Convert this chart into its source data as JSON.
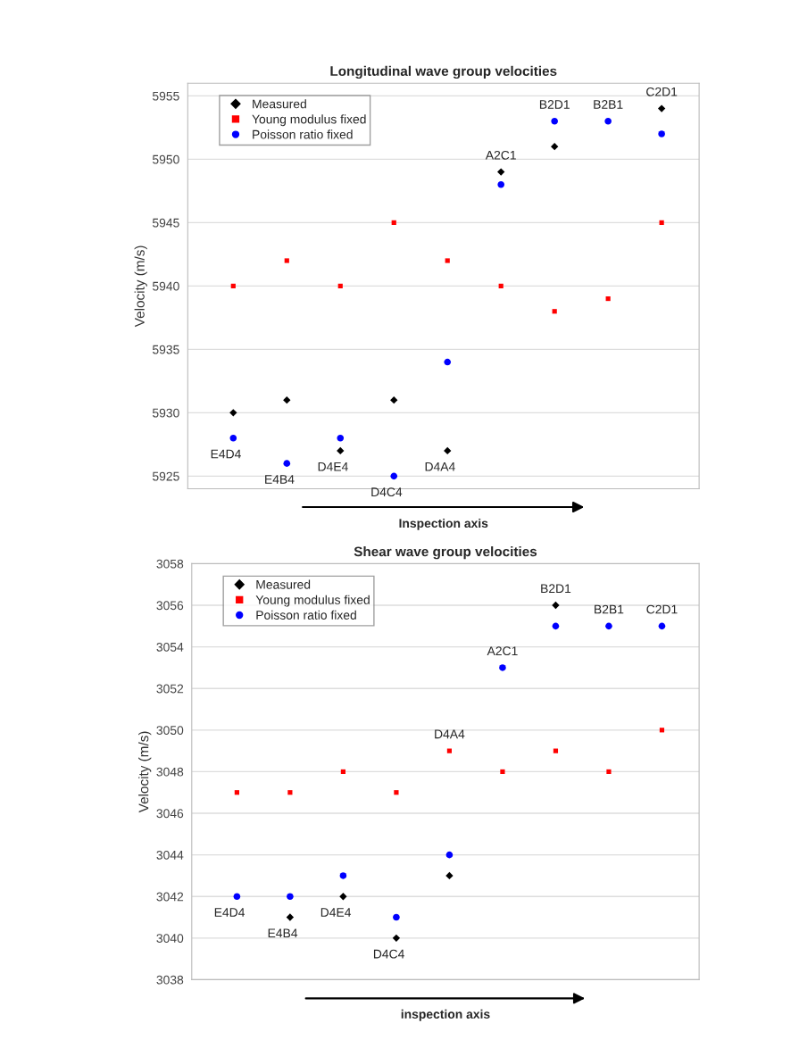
{
  "chart_data": [
    {
      "type": "scatter",
      "title": "Longitudinal wave group velocities",
      "xlabel": "Inspection axis",
      "ylabel": "Velocity (m/s)",
      "categories": [
        null,
        null,
        null,
        null,
        null,
        null,
        null,
        null,
        null
      ],
      "series": [
        {
          "name": "Measured",
          "color": "#000000",
          "marker": "diamond",
          "values": [
            5930,
            5931,
            5927,
            5931,
            5927,
            5949,
            5951,
            null,
            5954
          ]
        },
        {
          "name": "Young modulus fixed",
          "color": "#ff0000",
          "marker": "square",
          "values": [
            5940,
            5942,
            5940,
            5945,
            5942,
            5940,
            5938,
            5939,
            5945
          ]
        },
        {
          "name": "Poisson ratio fixed",
          "color": "#0000ff",
          "marker": "circle",
          "values": [
            5928,
            5926,
            5928,
            5925,
            5934,
            5948,
            5953,
            5953,
            5952
          ]
        }
      ],
      "annotations": [
        "E4D4",
        "E4B4",
        "D4E4",
        "D4C4",
        "D4A4",
        "A2C1",
        "B2D1",
        "B2B1",
        "C2D1"
      ],
      "ylim": [
        5924,
        5956
      ],
      "yticks": [
        5925,
        5930,
        5935,
        5940,
        5945,
        5950,
        5955
      ],
      "grid": "y",
      "legend": "top left",
      "tick_labels": "y"
    },
    {
      "type": "scatter",
      "title": "Shear wave group velocities",
      "xlabel": "inspection axis",
      "ylabel": "Velocity (m/s)",
      "categories": [
        null,
        null,
        null,
        null,
        null,
        null,
        null,
        null,
        null
      ],
      "series": [
        {
          "name": "Measured",
          "color": "#000000",
          "marker": "diamond",
          "values": [
            null,
            3041,
            3042,
            3040,
            3043,
            null,
            3056,
            null,
            null
          ]
        },
        {
          "name": "Young modulus fixed",
          "color": "#ff0000",
          "marker": "square",
          "values": [
            3047,
            3047,
            3048,
            3047,
            3049,
            3048,
            3049,
            3048,
            3050
          ]
        },
        {
          "name": "Poisson ratio fixed",
          "color": "#0000ff",
          "marker": "circle",
          "values": [
            3042,
            3042,
            3043,
            3041,
            3044,
            3053,
            3055,
            3055,
            3055
          ]
        }
      ],
      "annotations": [
        "E4D4",
        "E4B4",
        "D4E4",
        "D4C4",
        "D4A4",
        "A2C1",
        "B2D1",
        "B2B1",
        "C2D1"
      ],
      "ylim": [
        3038,
        3058
      ],
      "yticks": [
        3038,
        3040,
        3042,
        3044,
        3046,
        3048,
        3050,
        3052,
        3054,
        3056,
        3058
      ],
      "grid": "y",
      "legend": "top left",
      "tick_labels": "y"
    }
  ]
}
